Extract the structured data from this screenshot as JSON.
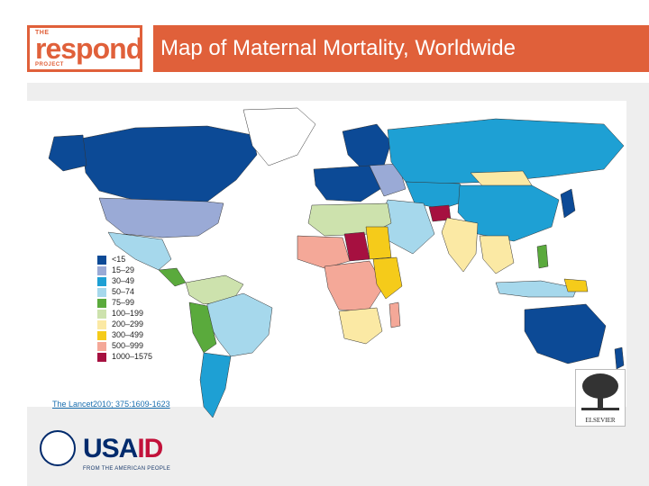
{
  "logo": {
    "the": "THE",
    "respond": "respond",
    "project": "PROJECT"
  },
  "title": "Map of Maternal Mortality, Worldwide",
  "legend": [
    {
      "label": "<15",
      "color": "#0c4a96"
    },
    {
      "label": "15–29",
      "color": "#9aaad6"
    },
    {
      "label": "30–49",
      "color": "#1ea0d4"
    },
    {
      "label": "50–74",
      "color": "#a6d8ec"
    },
    {
      "label": "75–99",
      "color": "#5aaa3c"
    },
    {
      "label": "100–199",
      "color": "#cde2ad"
    },
    {
      "label": "200–299",
      "color": "#fbe9a4"
    },
    {
      "label": "300–499",
      "color": "#f5cb1a"
    },
    {
      "label": "500–999",
      "color": "#f4a898"
    },
    {
      "label": "1000–1575",
      "color": "#a61040"
    }
  ],
  "citation": "The Lancet2010; 375:1609-1623",
  "publisher_logo": "ELSEVIER",
  "usaid": {
    "usa": "USA",
    "aid": "ID",
    "tagline": "FROM THE AMERICAN PEOPLE"
  },
  "colors": {
    "accent": "#e0603a",
    "ocean": "#ffffff",
    "panel": "#eeeeee"
  }
}
